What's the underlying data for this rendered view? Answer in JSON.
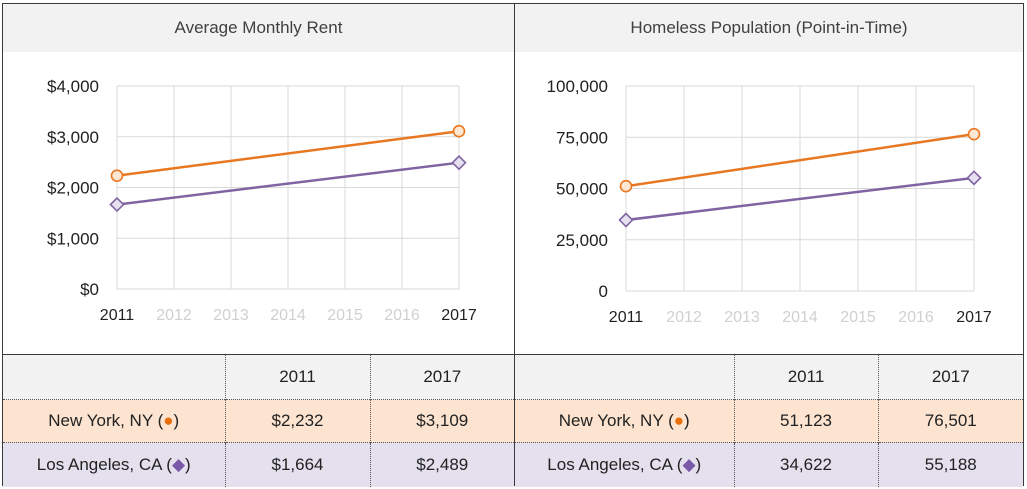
{
  "colors": {
    "new_york": "#e87722",
    "los_angeles": "#8064a2",
    "grid": "#d9d9d9",
    "faded_tick": "#d0d0d0"
  },
  "table_header": [
    "",
    "2011",
    "2017"
  ],
  "chart_data": [
    {
      "type": "line",
      "title": "Average Monthly Rent",
      "x": [
        "2011",
        "2012",
        "2013",
        "2014",
        "2015",
        "2016",
        "2017"
      ],
      "x_highlighted": [
        "2011",
        "2017"
      ],
      "ylim": [
        0,
        4000
      ],
      "y_ticks": [
        "$0",
        "$1,000",
        "$2,000",
        "$3,000",
        "$4,000"
      ],
      "grid": true,
      "series": [
        {
          "name": "New York, NY",
          "marker": "circle",
          "icon": "●",
          "x": [
            "2011",
            "2017"
          ],
          "values": [
            2232,
            3109
          ],
          "labels": [
            "$2,232",
            "$3,109"
          ]
        },
        {
          "name": "Los Angeles, CA",
          "marker": "diamond",
          "icon": "◆",
          "x": [
            "2011",
            "2017"
          ],
          "values": [
            1664,
            2489
          ],
          "labels": [
            "$1,664",
            "$2,489"
          ]
        }
      ]
    },
    {
      "type": "line",
      "title": "Homeless Population (Point-in-Time)",
      "x": [
        "2011",
        "2012",
        "2013",
        "2014",
        "2015",
        "2016",
        "2017"
      ],
      "x_highlighted": [
        "2011",
        "2017"
      ],
      "ylim": [
        0,
        100000
      ],
      "y_ticks": [
        "0",
        "25,000",
        "50,000",
        "75,000",
        "100,000"
      ],
      "grid": true,
      "series": [
        {
          "name": "New York, NY",
          "marker": "circle",
          "icon": "●",
          "x": [
            "2011",
            "2017"
          ],
          "values": [
            51123,
            76501
          ],
          "labels": [
            "51,123",
            "76,501"
          ]
        },
        {
          "name": "Los Angeles, CA",
          "marker": "diamond",
          "icon": "◆",
          "x": [
            "2011",
            "2017"
          ],
          "values": [
            34622,
            55188
          ],
          "labels": [
            "34,622",
            "55,188"
          ]
        }
      ]
    }
  ]
}
